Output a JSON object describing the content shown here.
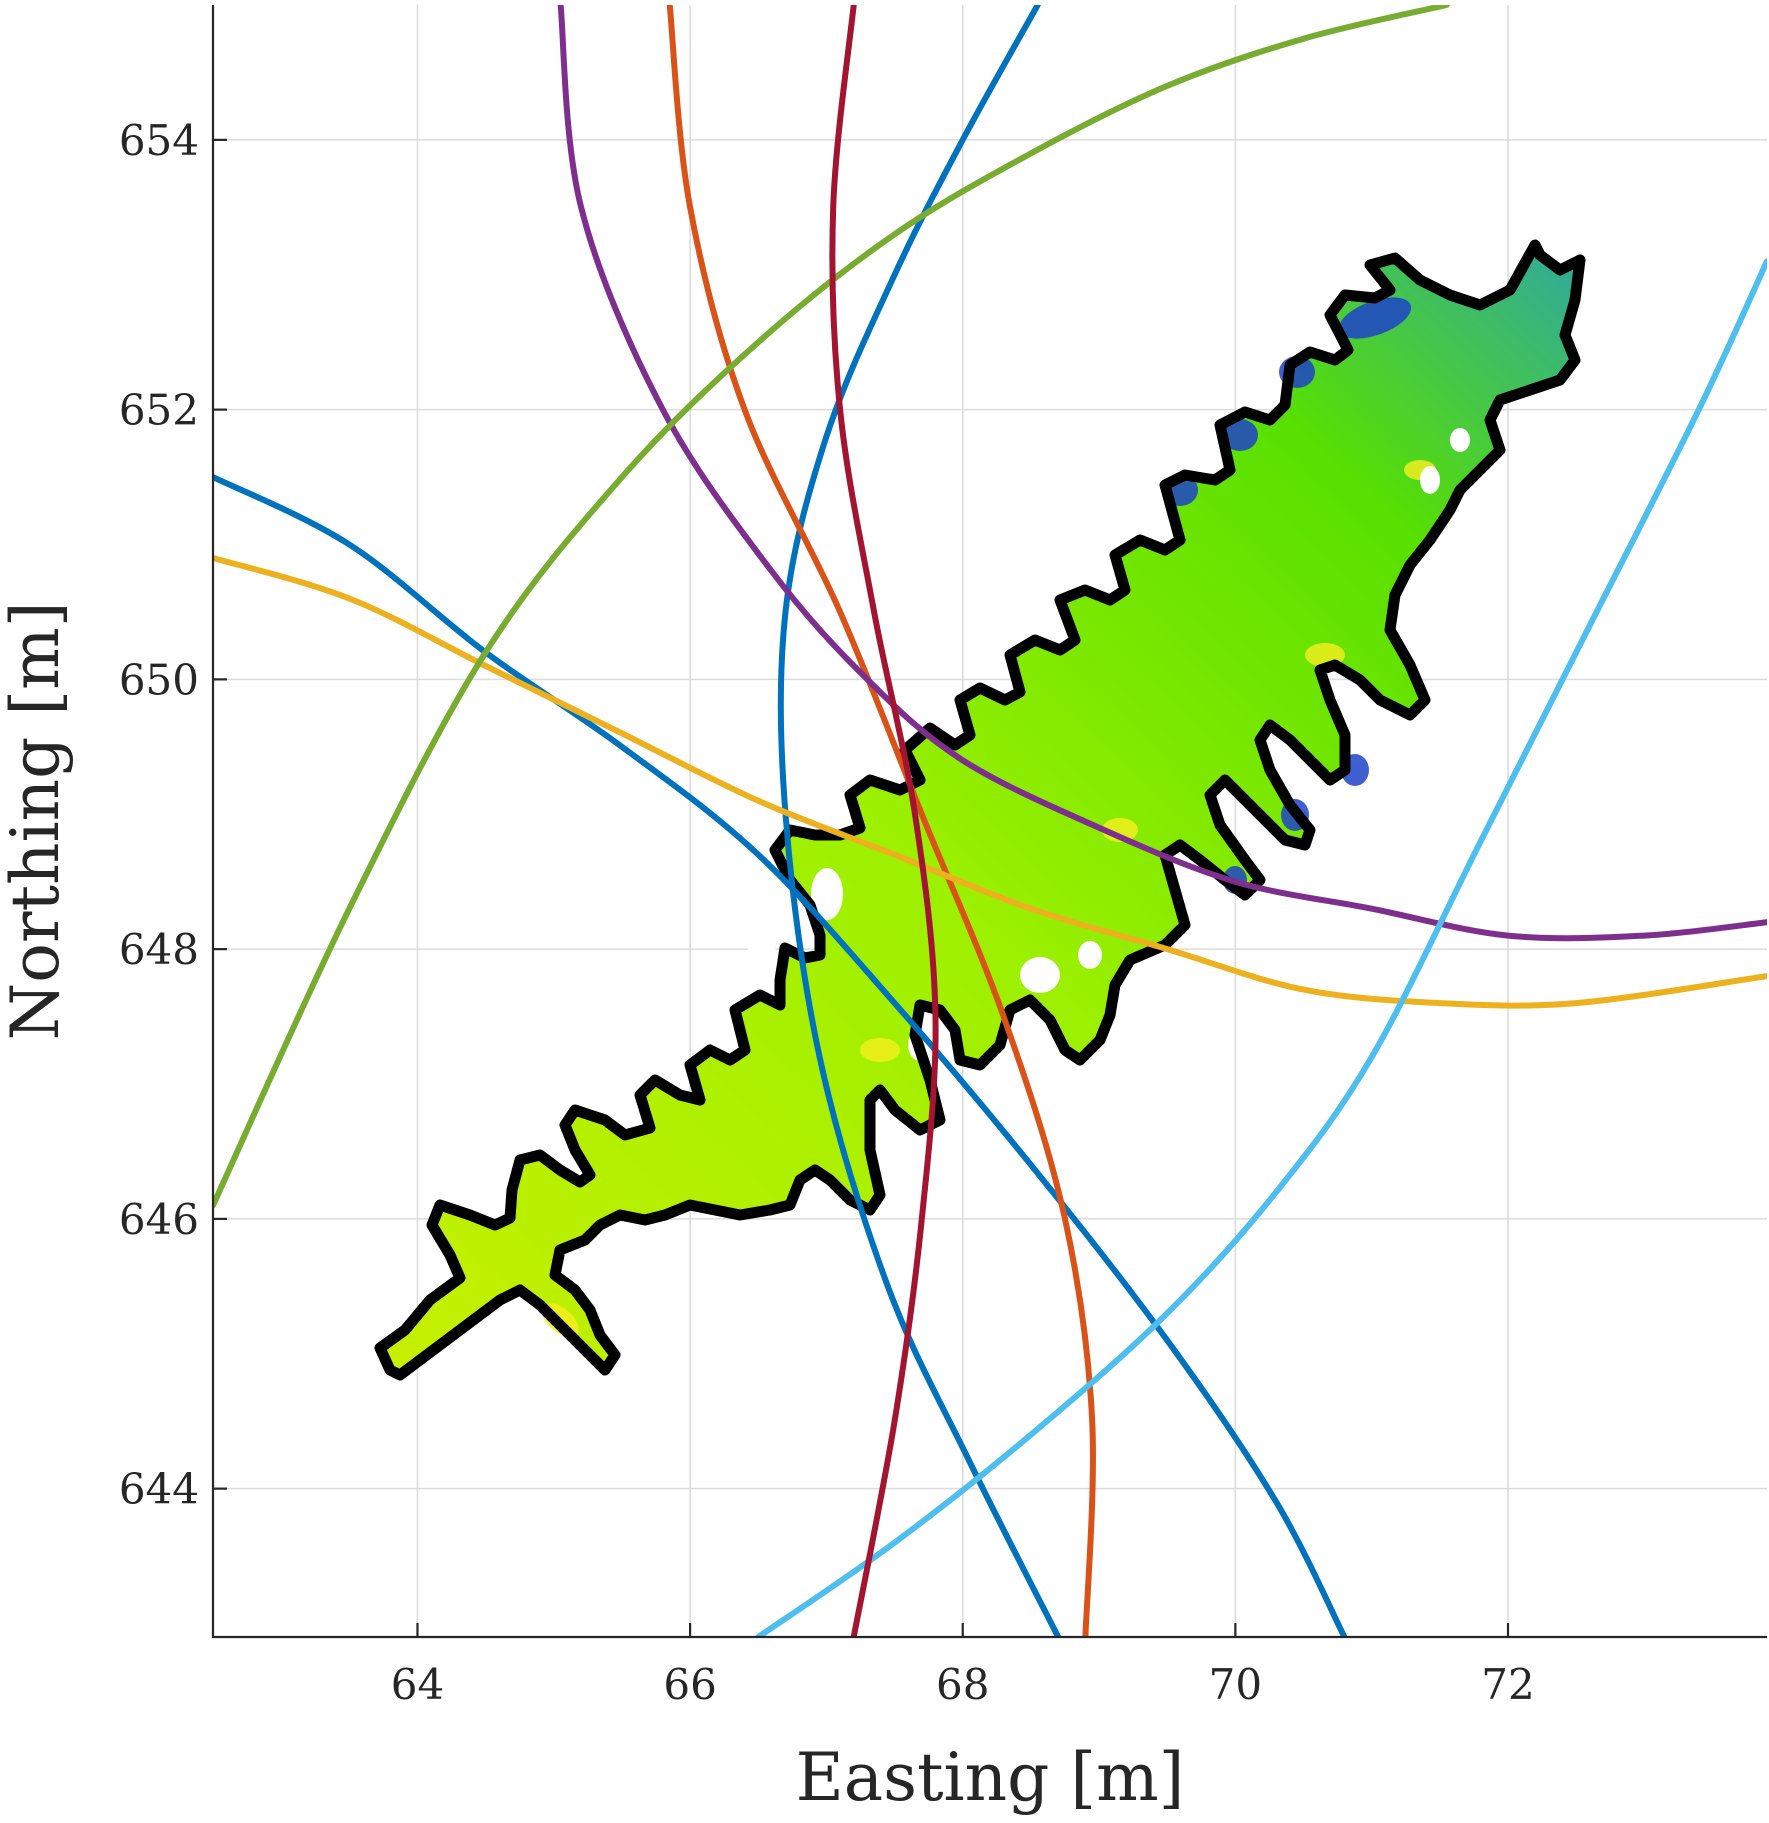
{
  "chart_data": {
    "type": "line",
    "xlabel": "Easting [m]",
    "ylabel": "Northing [m]",
    "xlim": [
      62.5,
      73.9
    ],
    "ylim": [
      642.9,
      655.0
    ],
    "xticks": [
      64,
      66,
      68,
      70,
      72
    ],
    "yticks": [
      644,
      646,
      648,
      650,
      652,
      654
    ],
    "grid": true,
    "series": [
      {
        "color": "#0072BD",
        "x": [
          62.5,
          63.5,
          64.5,
          65.5,
          66.5,
          67.5,
          68.5,
          69.5,
          70.3,
          70.8
        ],
        "y": [
          651.5,
          651.0,
          650.2,
          649.5,
          648.7,
          647.6,
          646.4,
          645.1,
          643.9,
          642.9
        ]
      },
      {
        "color": "#0072BD",
        "x": [
          68.55,
          68.0,
          67.5,
          67.0,
          66.7,
          66.7,
          66.95,
          67.45,
          68.05,
          68.7
        ],
        "y": [
          655.0,
          654.0,
          653.0,
          651.8,
          650.5,
          649.0,
          647.2,
          645.5,
          644.2,
          642.9
        ]
      },
      {
        "color": "#D95319",
        "x": [
          65.85,
          66.0,
          66.4,
          67.1,
          67.7,
          68.3,
          68.75,
          68.95,
          68.9
        ],
        "y": [
          655.0,
          653.5,
          652.0,
          650.5,
          649.0,
          647.5,
          646.0,
          644.5,
          642.9
        ]
      },
      {
        "color": "#EDB120",
        "x": [
          62.5,
          63.5,
          64.5,
          65.5,
          66.5,
          67.5,
          68.5,
          69.5,
          70.5,
          71.5,
          72.5,
          73.9
        ],
        "y": [
          650.9,
          650.6,
          650.1,
          649.6,
          649.1,
          648.7,
          648.3,
          648.0,
          647.7,
          647.6,
          647.6,
          647.8
        ]
      },
      {
        "color": "#7E2F8E",
        "x": [
          65.05,
          65.2,
          65.8,
          66.6,
          67.3,
          68.0,
          69.0,
          70.0,
          71.0,
          72.0,
          73.0,
          73.9
        ],
        "y": [
          655.0,
          653.5,
          652.0,
          650.8,
          650.0,
          649.4,
          648.9,
          648.5,
          648.3,
          648.1,
          648.1,
          648.2
        ]
      },
      {
        "color": "#77AC30",
        "x": [
          62.5,
          63.5,
          64.5,
          65.5,
          66.5,
          67.5,
          68.5,
          69.5,
          70.5,
          71.55
        ],
        "y": [
          646.1,
          648.3,
          650.2,
          651.5,
          652.5,
          653.3,
          653.9,
          654.4,
          654.75,
          655.0
        ]
      },
      {
        "color": "#4DBEEE",
        "x": [
          66.5,
          67.5,
          68.5,
          69.5,
          70.3,
          71.0,
          71.8,
          72.6,
          73.4,
          73.9
        ],
        "y": [
          642.9,
          643.6,
          644.4,
          645.3,
          646.2,
          647.2,
          648.8,
          650.4,
          652.0,
          653.1
        ]
      },
      {
        "color": "#A2142F",
        "x": [
          67.2,
          67.05,
          67.1,
          67.35,
          67.65,
          67.8,
          67.7,
          67.5,
          67.2
        ],
        "y": [
          655.0,
          653.5,
          652.0,
          650.5,
          649.0,
          647.5,
          646.0,
          644.5,
          642.9
        ]
      }
    ]
  }
}
